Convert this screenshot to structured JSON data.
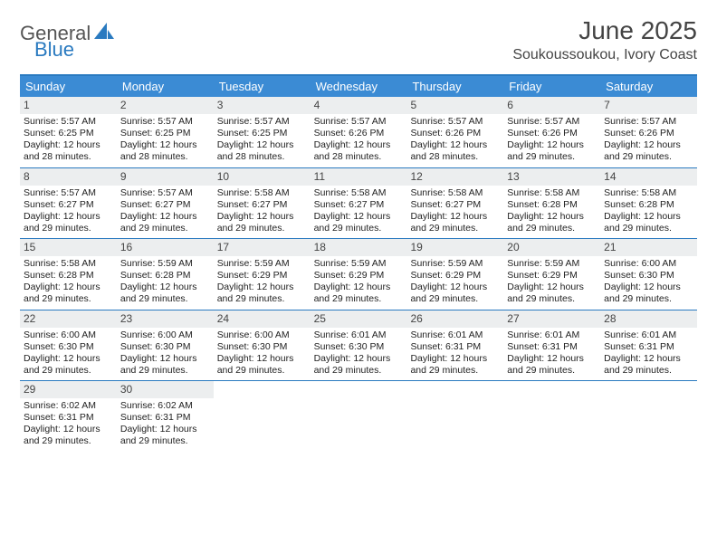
{
  "brand": {
    "word1": "General",
    "word2": "Blue",
    "word1_color": "#555555",
    "word2_color": "#2a7ac0"
  },
  "title": "June 2025",
  "subtitle": "Soukoussoukou, Ivory Coast",
  "colors": {
    "header_bar": "#3b8bd4",
    "header_top_border": "#2a7ac0",
    "week_divider": "#2a7ac0",
    "daynum_bg": "#eceeef",
    "text": "#222222",
    "title_text": "#444444"
  },
  "day_headers": [
    "Sunday",
    "Monday",
    "Tuesday",
    "Wednesday",
    "Thursday",
    "Friday",
    "Saturday"
  ],
  "labels": {
    "sunrise": "Sunrise:",
    "sunset": "Sunset:",
    "daylight": "Daylight:"
  },
  "weeks": [
    [
      {
        "n": "1",
        "sunrise": "5:57 AM",
        "sunset": "6:25 PM",
        "daylight": "12 hours and 28 minutes."
      },
      {
        "n": "2",
        "sunrise": "5:57 AM",
        "sunset": "6:25 PM",
        "daylight": "12 hours and 28 minutes."
      },
      {
        "n": "3",
        "sunrise": "5:57 AM",
        "sunset": "6:25 PM",
        "daylight": "12 hours and 28 minutes."
      },
      {
        "n": "4",
        "sunrise": "5:57 AM",
        "sunset": "6:26 PM",
        "daylight": "12 hours and 28 minutes."
      },
      {
        "n": "5",
        "sunrise": "5:57 AM",
        "sunset": "6:26 PM",
        "daylight": "12 hours and 28 minutes."
      },
      {
        "n": "6",
        "sunrise": "5:57 AM",
        "sunset": "6:26 PM",
        "daylight": "12 hours and 29 minutes."
      },
      {
        "n": "7",
        "sunrise": "5:57 AM",
        "sunset": "6:26 PM",
        "daylight": "12 hours and 29 minutes."
      }
    ],
    [
      {
        "n": "8",
        "sunrise": "5:57 AM",
        "sunset": "6:27 PM",
        "daylight": "12 hours and 29 minutes."
      },
      {
        "n": "9",
        "sunrise": "5:57 AM",
        "sunset": "6:27 PM",
        "daylight": "12 hours and 29 minutes."
      },
      {
        "n": "10",
        "sunrise": "5:58 AM",
        "sunset": "6:27 PM",
        "daylight": "12 hours and 29 minutes."
      },
      {
        "n": "11",
        "sunrise": "5:58 AM",
        "sunset": "6:27 PM",
        "daylight": "12 hours and 29 minutes."
      },
      {
        "n": "12",
        "sunrise": "5:58 AM",
        "sunset": "6:27 PM",
        "daylight": "12 hours and 29 minutes."
      },
      {
        "n": "13",
        "sunrise": "5:58 AM",
        "sunset": "6:28 PM",
        "daylight": "12 hours and 29 minutes."
      },
      {
        "n": "14",
        "sunrise": "5:58 AM",
        "sunset": "6:28 PM",
        "daylight": "12 hours and 29 minutes."
      }
    ],
    [
      {
        "n": "15",
        "sunrise": "5:58 AM",
        "sunset": "6:28 PM",
        "daylight": "12 hours and 29 minutes."
      },
      {
        "n": "16",
        "sunrise": "5:59 AM",
        "sunset": "6:28 PM",
        "daylight": "12 hours and 29 minutes."
      },
      {
        "n": "17",
        "sunrise": "5:59 AM",
        "sunset": "6:29 PM",
        "daylight": "12 hours and 29 minutes."
      },
      {
        "n": "18",
        "sunrise": "5:59 AM",
        "sunset": "6:29 PM",
        "daylight": "12 hours and 29 minutes."
      },
      {
        "n": "19",
        "sunrise": "5:59 AM",
        "sunset": "6:29 PM",
        "daylight": "12 hours and 29 minutes."
      },
      {
        "n": "20",
        "sunrise": "5:59 AM",
        "sunset": "6:29 PM",
        "daylight": "12 hours and 29 minutes."
      },
      {
        "n": "21",
        "sunrise": "6:00 AM",
        "sunset": "6:30 PM",
        "daylight": "12 hours and 29 minutes."
      }
    ],
    [
      {
        "n": "22",
        "sunrise": "6:00 AM",
        "sunset": "6:30 PM",
        "daylight": "12 hours and 29 minutes."
      },
      {
        "n": "23",
        "sunrise": "6:00 AM",
        "sunset": "6:30 PM",
        "daylight": "12 hours and 29 minutes."
      },
      {
        "n": "24",
        "sunrise": "6:00 AM",
        "sunset": "6:30 PM",
        "daylight": "12 hours and 29 minutes."
      },
      {
        "n": "25",
        "sunrise": "6:01 AM",
        "sunset": "6:30 PM",
        "daylight": "12 hours and 29 minutes."
      },
      {
        "n": "26",
        "sunrise": "6:01 AM",
        "sunset": "6:31 PM",
        "daylight": "12 hours and 29 minutes."
      },
      {
        "n": "27",
        "sunrise": "6:01 AM",
        "sunset": "6:31 PM",
        "daylight": "12 hours and 29 minutes."
      },
      {
        "n": "28",
        "sunrise": "6:01 AM",
        "sunset": "6:31 PM",
        "daylight": "12 hours and 29 minutes."
      }
    ],
    [
      {
        "n": "29",
        "sunrise": "6:02 AM",
        "sunset": "6:31 PM",
        "daylight": "12 hours and 29 minutes."
      },
      {
        "n": "30",
        "sunrise": "6:02 AM",
        "sunset": "6:31 PM",
        "daylight": "12 hours and 29 minutes."
      },
      null,
      null,
      null,
      null,
      null
    ]
  ]
}
